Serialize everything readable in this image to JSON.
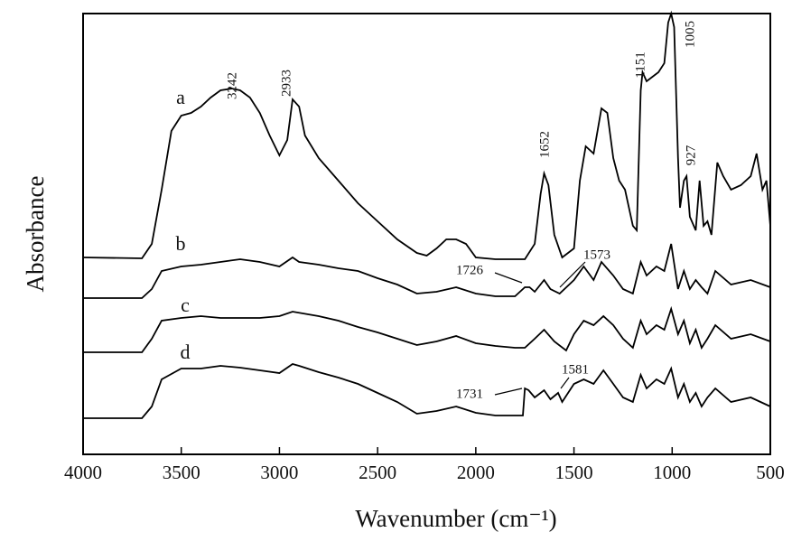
{
  "chart_data": {
    "type": "line",
    "xlabel": "Wavenumber (cm⁻¹)",
    "ylabel": "Absorbance",
    "xlim": [
      4000,
      500
    ],
    "xticks": [
      4000,
      3500,
      3000,
      2500,
      2000,
      1500,
      1000,
      500
    ],
    "ylim": [
      0,
      488
    ],
    "annotations": [
      "3242",
      "2933",
      "1652",
      "1151",
      "1005",
      "927",
      "1726",
      "1573",
      "1731",
      "1581"
    ],
    "series": [
      {
        "name": "a",
        "color": "#000000",
        "x": [
          4000,
          3700,
          3650,
          3600,
          3550,
          3500,
          3450,
          3400,
          3350,
          3300,
          3242,
          3200,
          3150,
          3100,
          3050,
          3000,
          2960,
          2933,
          2900,
          2870,
          2800,
          2700,
          2600,
          2500,
          2400,
          2300,
          2250,
          2200,
          2150,
          2100,
          2050,
          2000,
          1900,
          1800,
          1750,
          1700,
          1670,
          1652,
          1630,
          1600,
          1560,
          1500,
          1470,
          1440,
          1400,
          1360,
          1330,
          1300,
          1270,
          1240,
          1200,
          1180,
          1160,
          1151,
          1130,
          1100,
          1070,
          1040,
          1020,
          1005,
          990,
          970,
          960,
          940,
          927,
          910,
          880,
          860,
          840,
          820,
          800,
          770,
          740,
          700,
          650,
          600,
          570,
          540,
          520,
          500
        ],
        "values": [
          218,
          217,
          233,
          293,
          358,
          375,
          378,
          385,
          395,
          403,
          405,
          403,
          395,
          378,
          353,
          331,
          348,
          393,
          385,
          353,
          328,
          303,
          278,
          258,
          238,
          223,
          220,
          228,
          238,
          238,
          233,
          218,
          216,
          216,
          216,
          233,
          288,
          311,
          298,
          243,
          218,
          228,
          303,
          341,
          333,
          383,
          378,
          328,
          303,
          293,
          253,
          248,
          403,
          423,
          413,
          418,
          423,
          433,
          478,
          488,
          473,
          328,
          273,
          303,
          308,
          263,
          248,
          303,
          253,
          258,
          243,
          323,
          308,
          293,
          298,
          308,
          333,
          293,
          303,
          253
        ]
      },
      {
        "name": "b",
        "color": "#000000",
        "x": [
          4000,
          3700,
          3650,
          3600,
          3500,
          3400,
          3300,
          3200,
          3100,
          3000,
          2933,
          2900,
          2800,
          2700,
          2600,
          2500,
          2400,
          2300,
          2200,
          2100,
          2000,
          1900,
          1800,
          1750,
          1726,
          1700,
          1652,
          1620,
          1573,
          1500,
          1450,
          1400,
          1360,
          1300,
          1250,
          1200,
          1160,
          1130,
          1080,
          1040,
          1005,
          970,
          940,
          910,
          880,
          850,
          820,
          780,
          700,
          600,
          500
        ],
        "values": [
          173,
          173,
          183,
          203,
          208,
          210,
          213,
          216,
          213,
          208,
          218,
          213,
          210,
          206,
          203,
          195,
          188,
          178,
          180,
          185,
          178,
          175,
          175,
          185,
          185,
          180,
          193,
          183,
          178,
          193,
          208,
          193,
          213,
          198,
          183,
          178,
          213,
          198,
          208,
          203,
          233,
          183,
          203,
          183,
          193,
          185,
          178,
          203,
          188,
          193,
          185
        ]
      },
      {
        "name": "c",
        "color": "#000000",
        "x": [
          4000,
          3700,
          3650,
          3600,
          3500,
          3400,
          3300,
          3200,
          3100,
          3000,
          2933,
          2800,
          2700,
          2600,
          2500,
          2400,
          2300,
          2200,
          2100,
          2000,
          1900,
          1800,
          1750,
          1700,
          1652,
          1600,
          1540,
          1500,
          1450,
          1400,
          1350,
          1300,
          1250,
          1200,
          1160,
          1130,
          1080,
          1040,
          1005,
          970,
          940,
          910,
          880,
          850,
          820,
          780,
          700,
          600,
          500
        ],
        "values": [
          113,
          113,
          128,
          148,
          151,
          153,
          151,
          151,
          151,
          153,
          158,
          153,
          148,
          141,
          135,
          128,
          121,
          125,
          131,
          123,
          120,
          118,
          118,
          128,
          138,
          125,
          115,
          133,
          148,
          143,
          153,
          143,
          128,
          118,
          148,
          133,
          143,
          138,
          161,
          133,
          148,
          123,
          138,
          118,
          128,
          143,
          128,
          133,
          125
        ]
      },
      {
        "name": "d",
        "color": "#000000",
        "x": [
          4000,
          3700,
          3650,
          3600,
          3500,
          3400,
          3300,
          3200,
          3100,
          3000,
          2933,
          2900,
          2800,
          2700,
          2600,
          2500,
          2400,
          2300,
          2200,
          2100,
          2000,
          1900,
          1800,
          1760,
          1750,
          1731,
          1700,
          1652,
          1620,
          1581,
          1560,
          1500,
          1450,
          1400,
          1350,
          1300,
          1250,
          1200,
          1160,
          1130,
          1080,
          1040,
          1005,
          970,
          940,
          910,
          880,
          850,
          820,
          780,
          700,
          600,
          500
        ],
        "values": [
          40,
          40,
          53,
          83,
          95,
          95,
          98,
          96,
          93,
          90,
          100,
          98,
          91,
          85,
          78,
          68,
          58,
          45,
          48,
          53,
          46,
          43,
          43,
          43,
          73,
          71,
          63,
          71,
          61,
          68,
          58,
          78,
          83,
          78,
          93,
          78,
          63,
          58,
          88,
          73,
          83,
          78,
          95,
          63,
          78,
          58,
          68,
          53,
          63,
          73,
          58,
          63,
          53
        ]
      }
    ]
  }
}
